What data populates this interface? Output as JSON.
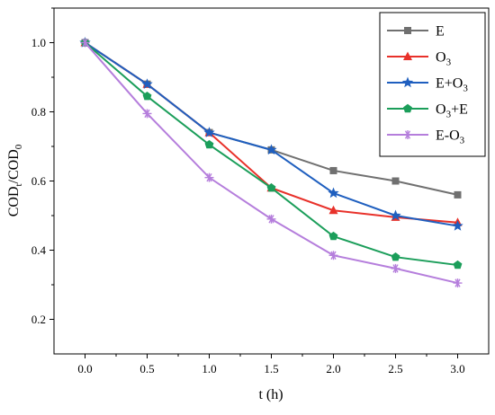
{
  "chart_data": {
    "type": "line",
    "xlabel": "t (h)",
    "ylabel": {
      "base": "COD",
      "sub1": "t",
      "sep": "/COD",
      "sub2": "0"
    },
    "x": [
      0.0,
      0.5,
      1.0,
      1.5,
      2.0,
      2.5,
      3.0
    ],
    "x_tick_labels": [
      "0.0",
      "0.5",
      "1.0",
      "1.5",
      "2.0",
      "2.5",
      "3.0"
    ],
    "y_tick_labels": [
      "0.2",
      "0.4",
      "0.6",
      "0.8",
      "1.0"
    ],
    "xlim": [
      -0.25,
      3.25
    ],
    "ylim": [
      0.1,
      1.1
    ],
    "grid": false,
    "legend_position": "top-right",
    "series": [
      {
        "key": "E",
        "label": {
          "main": "E",
          "sub": "",
          "tail": ""
        },
        "color": "#707070",
        "marker": "square",
        "values": [
          1.0,
          0.88,
          0.74,
          0.69,
          0.63,
          0.6,
          0.56
        ]
      },
      {
        "key": "O3",
        "label": {
          "main": "O",
          "sub": "3",
          "tail": ""
        },
        "color": "#e8312a",
        "marker": "triangle",
        "values": [
          1.0,
          0.88,
          0.74,
          0.58,
          0.515,
          0.495,
          0.48
        ]
      },
      {
        "key": "E+O3",
        "label": {
          "main": "E+O",
          "sub": "3",
          "tail": ""
        },
        "color": "#1f5fbf",
        "marker": "star",
        "values": [
          1.0,
          0.88,
          0.74,
          0.69,
          0.565,
          0.5,
          0.47
        ]
      },
      {
        "key": "O3+E",
        "label": {
          "main": "O",
          "sub": "3",
          "tail": "+E"
        },
        "color": "#1b9e5a",
        "marker": "pentagon",
        "values": [
          1.0,
          0.845,
          0.705,
          0.58,
          0.44,
          0.38,
          0.357
        ]
      },
      {
        "key": "E-O3",
        "label": {
          "main": "E-O",
          "sub": "3",
          "tail": ""
        },
        "color": "#b57edc",
        "marker": "asterisk",
        "values": [
          1.0,
          0.795,
          0.61,
          0.49,
          0.385,
          0.347,
          0.305
        ]
      }
    ]
  }
}
